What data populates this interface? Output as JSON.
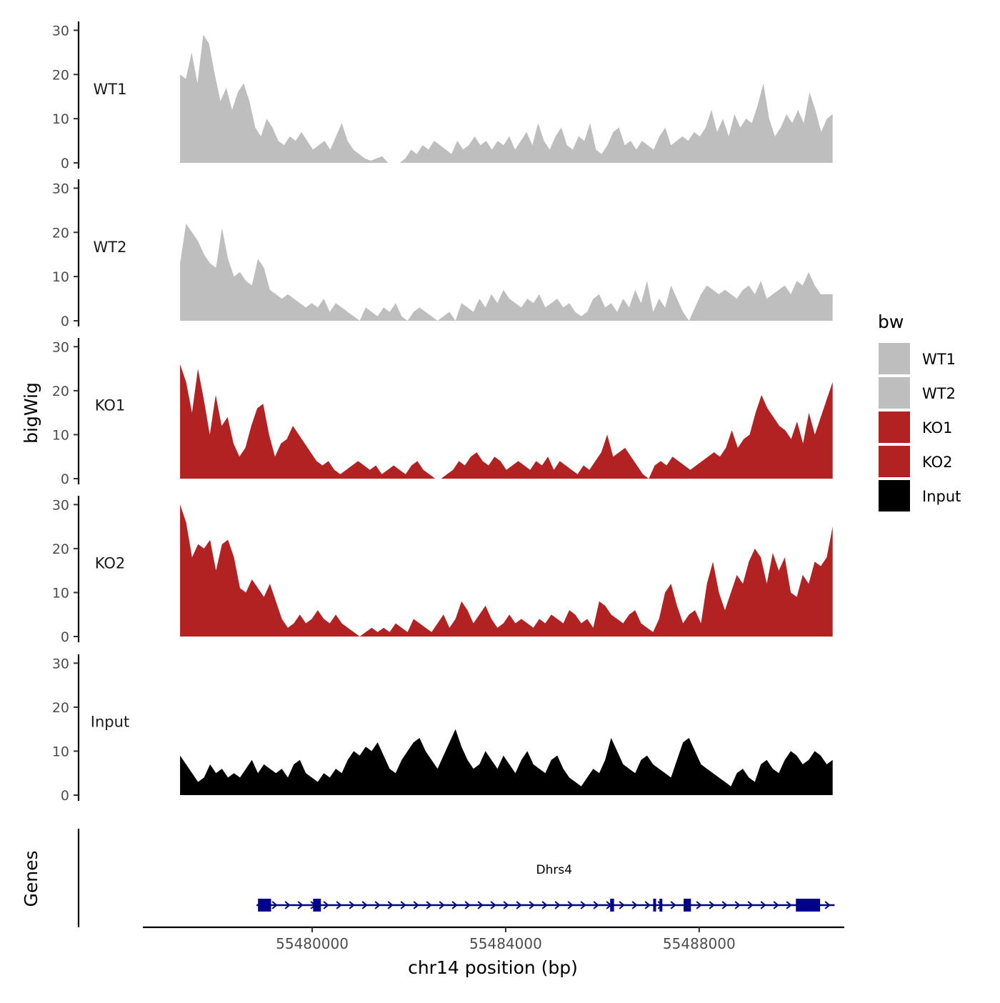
{
  "chart_data": {
    "type": "area",
    "y_axis_label": "bigWig",
    "genes_axis_label": "Genes",
    "x_axis_label": "chr14 position (bp)",
    "x_ticks": [
      55480000,
      55484000,
      55488000
    ],
    "x_tick_labels": [
      "55480000",
      "55484000",
      "55488000"
    ],
    "x_range": [
      55476500,
      55491000
    ],
    "y_range": [
      0,
      32
    ],
    "y_ticks": [
      0,
      10,
      20,
      30
    ],
    "y_tick_labels": [
      "0",
      "10",
      "20",
      "30"
    ],
    "legend": {
      "title": "bw",
      "entries": [
        {
          "label": "WT1",
          "color": "#bebebe"
        },
        {
          "label": "WT2",
          "color": "#bebebe"
        },
        {
          "label": "KO1",
          "color": "#b22222"
        },
        {
          "label": "KO2",
          "color": "#b22222"
        },
        {
          "label": "Input",
          "color": "#000000"
        }
      ]
    },
    "track_x_start": 55477270,
    "track_x_end": 55490760,
    "tracks": [
      {
        "name": "WT1",
        "color": "#bebebe",
        "values": [
          20,
          19,
          25,
          18,
          29,
          27,
          20,
          14,
          17,
          12,
          16,
          18,
          14,
          8,
          6,
          10,
          8,
          5,
          4,
          6,
          5,
          7,
          5,
          3,
          4,
          5,
          3,
          6,
          9,
          5,
          3,
          2,
          1,
          0.5,
          1,
          1.5,
          0,
          0,
          0,
          1,
          3,
          2,
          4,
          3,
          5,
          4,
          3,
          2,
          5,
          3,
          4,
          6,
          4,
          5,
          3,
          5,
          4,
          6,
          3,
          5,
          7,
          4,
          9,
          5,
          3,
          6,
          8,
          4,
          3,
          6,
          5,
          9,
          3,
          2,
          4,
          7,
          8,
          4,
          5,
          3,
          5,
          4,
          3,
          6,
          8,
          4,
          5,
          6,
          5,
          7,
          6,
          8,
          12,
          7,
          10,
          6,
          11,
          8,
          10,
          9,
          13,
          18,
          10,
          6,
          8,
          11,
          9,
          12,
          9,
          16,
          12,
          7,
          10,
          11
        ]
      },
      {
        "name": "WT2",
        "color": "#bebebe",
        "values": [
          13,
          22,
          20,
          18,
          15,
          13,
          12,
          21,
          14,
          10,
          11,
          9,
          8,
          14,
          12,
          7,
          6,
          5,
          6,
          5,
          4,
          3,
          4,
          3,
          5,
          2,
          4,
          3,
          2,
          1,
          0,
          3,
          2,
          1,
          3,
          2,
          4,
          1,
          0,
          2,
          3,
          2,
          1,
          0,
          1,
          2,
          0,
          4,
          3,
          2,
          5,
          3,
          6,
          4,
          7,
          5,
          4,
          3,
          5,
          4,
          6,
          3,
          4,
          5,
          3,
          4,
          2,
          1,
          2,
          5,
          6,
          3,
          4,
          2,
          5,
          3,
          7,
          4,
          9,
          2,
          5,
          3,
          8,
          5,
          2,
          0,
          3,
          6,
          8,
          7,
          6,
          7,
          6,
          5,
          7,
          8,
          6,
          9,
          5,
          6,
          7,
          8,
          6,
          9,
          8,
          11,
          8,
          6,
          6,
          6
        ]
      },
      {
        "name": "KO1",
        "color": "#b22222",
        "values": [
          26,
          22,
          15,
          25,
          18,
          10,
          19,
          12,
          14,
          8,
          5,
          7,
          12,
          16,
          17,
          10,
          5,
          8,
          9,
          12,
          10,
          8,
          6,
          4,
          3,
          4,
          2,
          1,
          2,
          3,
          4,
          3,
          2,
          3,
          1,
          2,
          3,
          2,
          1,
          3,
          4,
          2,
          1,
          0,
          0,
          1,
          2,
          4,
          3,
          5,
          6,
          4,
          3,
          5,
          4,
          2,
          3,
          4,
          3,
          2,
          4,
          3,
          5,
          2,
          4,
          3,
          2,
          1,
          3,
          2,
          4,
          6,
          10,
          5,
          6,
          7,
          5,
          3,
          1,
          0,
          3,
          4,
          3,
          5,
          4,
          3,
          2,
          3,
          4,
          5,
          6,
          5,
          7,
          11,
          7,
          9,
          10,
          15,
          19,
          16,
          14,
          12,
          11,
          9,
          13,
          8,
          15,
          10,
          14,
          18,
          22
        ]
      },
      {
        "name": "KO2",
        "color": "#b22222",
        "values": [
          30,
          26,
          18,
          21,
          20,
          22,
          15,
          21,
          22,
          18,
          11,
          10,
          13,
          11,
          9,
          12,
          8,
          4,
          2,
          3,
          5,
          3,
          4,
          6,
          4,
          3,
          5,
          3,
          2,
          1,
          0,
          1,
          2,
          1,
          2,
          1,
          3,
          2,
          1,
          4,
          3,
          2,
          1,
          3,
          5,
          2,
          4,
          8,
          6,
          3,
          5,
          7,
          4,
          2,
          3,
          5,
          3,
          4,
          3,
          2,
          4,
          3,
          5,
          4,
          3,
          6,
          5,
          3,
          4,
          2,
          8,
          7,
          5,
          4,
          3,
          5,
          6,
          3,
          2,
          1,
          4,
          10,
          12,
          7,
          3,
          5,
          6,
          3,
          12,
          17,
          10,
          6,
          10,
          14,
          12,
          17,
          20,
          18,
          12,
          19,
          15,
          18,
          10,
          9,
          14,
          12,
          17,
          16,
          18,
          25
        ]
      },
      {
        "name": "Input",
        "color": "#000000",
        "values": [
          9,
          7,
          5,
          3,
          4,
          7,
          5,
          6,
          4,
          5,
          4,
          6,
          8,
          5,
          7,
          6,
          5,
          6,
          4,
          7,
          8,
          5,
          4,
          3,
          5,
          4,
          6,
          5,
          8,
          10,
          9,
          11,
          10,
          12,
          9,
          6,
          5,
          8,
          10,
          12,
          13,
          10,
          8,
          6,
          9,
          12,
          15,
          11,
          8,
          6,
          7,
          10,
          8,
          6,
          9,
          7,
          5,
          8,
          10,
          7,
          6,
          5,
          8,
          9,
          6,
          4,
          3,
          2,
          4,
          6,
          5,
          8,
          13,
          10,
          7,
          6,
          5,
          8,
          9,
          7,
          6,
          5,
          4,
          8,
          12,
          13,
          10,
          7,
          6,
          5,
          4,
          3,
          2,
          5,
          6,
          4,
          3,
          7,
          8,
          6,
          5,
          8,
          10,
          9,
          7,
          8,
          10,
          9,
          7,
          8
        ]
      }
    ],
    "gene": {
      "name": "Dhrs4",
      "start": 55478850,
      "end": 55490800,
      "strand": "+",
      "color": "#00008b",
      "exons": [
        [
          55478880,
          55479150
        ],
        [
          55480020,
          55480180
        ],
        [
          55486160,
          55486240
        ],
        [
          55487050,
          55487100
        ],
        [
          55487180,
          55487230
        ],
        [
          55487680,
          55487830
        ],
        [
          55490000,
          55490500
        ]
      ]
    }
  }
}
